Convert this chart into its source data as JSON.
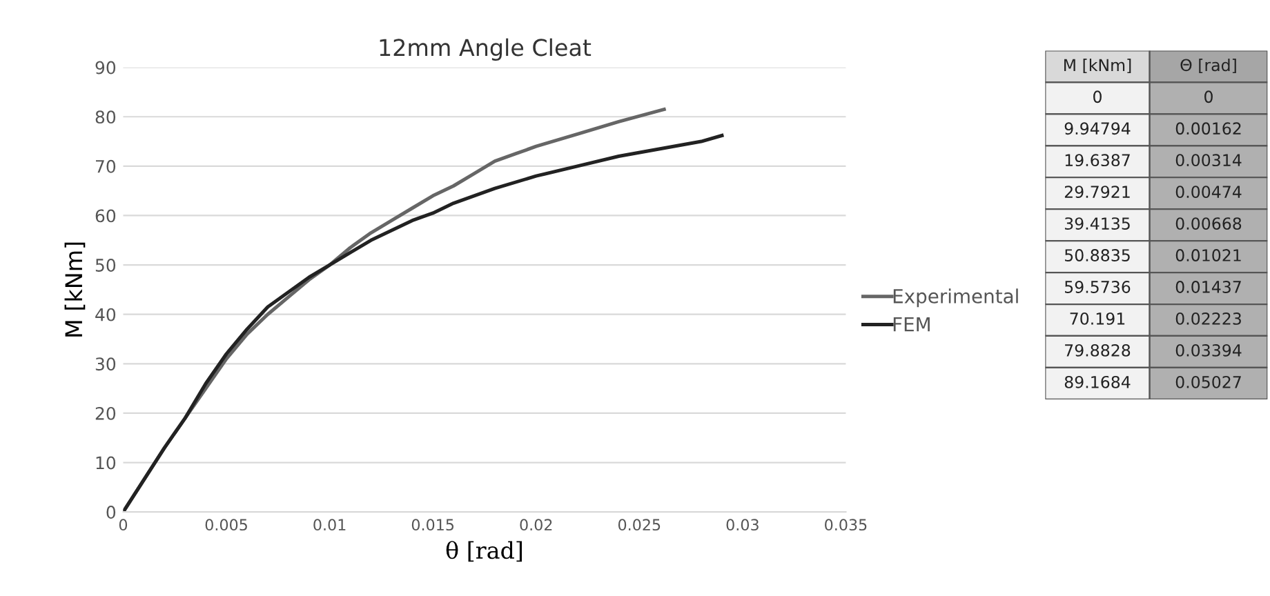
{
  "chart_data": [
    {
      "type": "line",
      "title": "12mm Angle Cleat",
      "xlabel": "θ [rad]",
      "ylabel": "M [kNm]",
      "xlim": [
        0,
        0.035
      ],
      "xticks": [
        0,
        0.005,
        0.01,
        0.015,
        0.02,
        0.025,
        0.03,
        0.035
      ],
      "ylim": [
        0,
        90
      ],
      "yticks": [
        0,
        10,
        20,
        30,
        40,
        50,
        60,
        70,
        80,
        90
      ],
      "grid": "y",
      "legend": "right",
      "marker": "none",
      "line_style": "solid",
      "series": [
        {
          "name": "Experimental",
          "color": "#666666",
          "x": [
            0,
            0.002,
            0.003,
            0.004,
            0.005,
            0.006,
            0.007,
            0.008,
            0.009,
            0.01,
            0.011,
            0.012,
            0.013,
            0.014,
            0.015,
            0.016,
            0.017,
            0.018,
            0.019,
            0.02,
            0.022,
            0.024,
            0.0262
          ],
          "values": [
            0,
            13,
            19,
            25,
            31,
            36,
            40,
            43.5,
            47,
            50,
            53.5,
            56.5,
            59,
            61.5,
            64,
            66,
            68.5,
            71,
            72.5,
            74,
            76.5,
            79,
            81.5
          ]
        },
        {
          "name": "FEM",
          "color": "#222222",
          "x": [
            0,
            0.002,
            0.003,
            0.004,
            0.005,
            0.006,
            0.007,
            0.008,
            0.009,
            0.01,
            0.011,
            0.012,
            0.013,
            0.014,
            0.015,
            0.016,
            0.017,
            0.018,
            0.02,
            0.022,
            0.024,
            0.026,
            0.028,
            0.029
          ],
          "values": [
            0,
            13,
            19,
            26,
            32,
            37,
            41.5,
            44.5,
            47.5,
            50,
            52.5,
            55,
            57,
            59,
            60.5,
            62.5,
            64,
            65.5,
            68,
            70,
            72,
            73.5,
            75,
            76.2
          ]
        }
      ]
    },
    {
      "type": "other",
      "annotations": [
        "M [kNm]",
        "Θ [rad]",
        "0",
        "0",
        "9.94794",
        "0.00162",
        "19.6387",
        "0.00314",
        "29.7921",
        "0.00474",
        "39.4135",
        "0.00668",
        "50.8835",
        "0.01021",
        "59.5736",
        "0.01437",
        "70.191",
        "0.02223",
        "79.8828",
        "0.03394",
        "89.1684",
        "0.05027"
      ]
    }
  ]
}
